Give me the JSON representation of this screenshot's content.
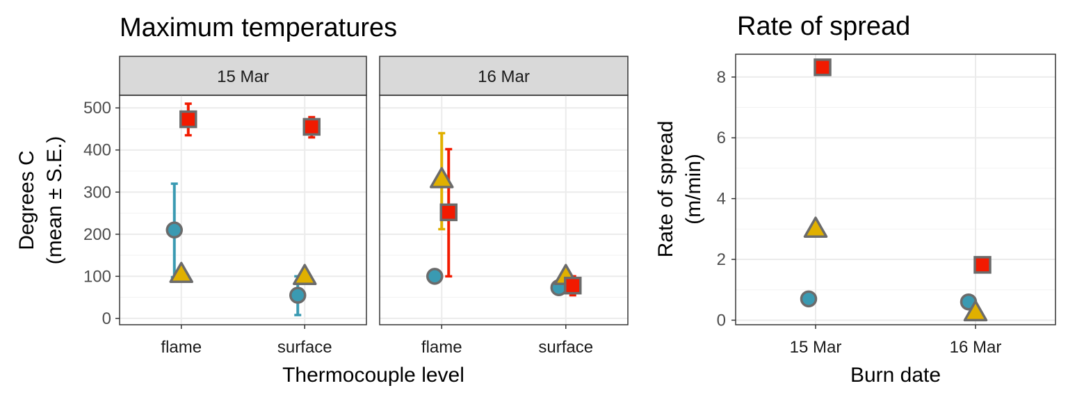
{
  "colors": {
    "circle": "#3a9ab2",
    "triangle": "#e0b000",
    "square": "#f21a00",
    "outline": "#6b6b6b",
    "strip": "#d9d9d9",
    "grid": "#ebebeb",
    "text": "#4d4d4d",
    "title": "#000000"
  },
  "chart_data": [
    {
      "type": "scatter",
      "title": "Maximum temperatures",
      "xlabel": "Thermocouple level",
      "ylabel": "Degrees C",
      "ylabel2": "(mean ± S.E.)",
      "categories": [
        "flame",
        "surface"
      ],
      "ylim": [
        -15,
        530
      ],
      "yticks": [
        0,
        100,
        200,
        300,
        400,
        500
      ],
      "yticklabels": [
        "0",
        "100",
        "200",
        "300",
        "400",
        "500"
      ],
      "grid": true,
      "facets": [
        {
          "label": "15 Mar",
          "series": [
            {
              "shape": "circle",
              "points": [
                {
                  "x": "flame",
                  "y": 210,
                  "lo": 98,
                  "hi": 320
                },
                {
                  "x": "surface",
                  "y": 55,
                  "lo": 8,
                  "hi": 100
                }
              ]
            },
            {
              "shape": "triangle",
              "points": [
                {
                  "x": "flame",
                  "y": 105
                },
                {
                  "x": "surface",
                  "y": 100
                }
              ]
            },
            {
              "shape": "square",
              "points": [
                {
                  "x": "flame",
                  "y": 473,
                  "lo": 435,
                  "hi": 510
                },
                {
                  "x": "surface",
                  "y": 455,
                  "lo": 430,
                  "hi": 478
                }
              ]
            }
          ]
        },
        {
          "label": "16 Mar",
          "series": [
            {
              "shape": "circle",
              "points": [
                {
                  "x": "flame",
                  "y": 100
                },
                {
                  "x": "surface",
                  "y": 73
                }
              ]
            },
            {
              "shape": "triangle",
              "points": [
                {
                  "x": "flame",
                  "y": 330,
                  "lo": 212,
                  "hi": 440
                },
                {
                  "x": "surface",
                  "y": 100
                }
              ]
            },
            {
              "shape": "square",
              "points": [
                {
                  "x": "flame",
                  "y": 252,
                  "lo": 100,
                  "hi": 402
                },
                {
                  "x": "surface",
                  "y": 78,
                  "lo": 55,
                  "hi": 100
                }
              ]
            }
          ]
        }
      ]
    },
    {
      "type": "scatter",
      "title": "Rate of spread",
      "xlabel": "Burn date",
      "ylabel": "Rate of spread",
      "ylabel2": "(m/min)",
      "categories": [
        "15 Mar",
        "16 Mar"
      ],
      "ylim": [
        -0.15,
        8.75
      ],
      "yticks": [
        0,
        2,
        4,
        6,
        8
      ],
      "yticklabels": [
        "0",
        "2",
        "4",
        "6",
        "8"
      ],
      "grid": true,
      "series": [
        {
          "shape": "circle",
          "points": [
            {
              "x": "15 Mar",
              "y": 0.7
            },
            {
              "x": "16 Mar",
              "y": 0.6
            }
          ]
        },
        {
          "shape": "triangle",
          "points": [
            {
              "x": "15 Mar",
              "y": 3.0
            },
            {
              "x": "16 Mar",
              "y": 0.25
            }
          ]
        },
        {
          "shape": "square",
          "points": [
            {
              "x": "15 Mar",
              "y": 8.32
            },
            {
              "x": "16 Mar",
              "y": 1.82
            }
          ]
        }
      ]
    }
  ]
}
